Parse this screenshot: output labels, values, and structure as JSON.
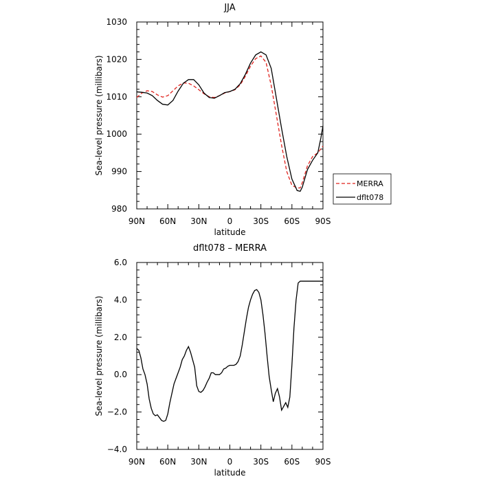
{
  "chart_data": [
    {
      "type": "line",
      "title": "JJA",
      "xlabel": "latitude",
      "ylabel": "Sea-level pressure (millibars)",
      "x_direction": "90N to 90S (latitude decreasing left to right)",
      "xlim": [
        90,
        -90
      ],
      "xticks": [
        90,
        60,
        30,
        0,
        -30,
        -60,
        -90
      ],
      "xtick_labels": [
        "90N",
        "60N",
        "30N",
        "0",
        "30S",
        "60S",
        "90S"
      ],
      "ylim": [
        980,
        1030
      ],
      "yticks": [
        980,
        990,
        1000,
        1010,
        1020,
        1030
      ],
      "ytick_labels": [
        "980",
        "990",
        "1000",
        "1010",
        "1020",
        "1030"
      ],
      "legend_position": "right, outside plot, near bottom",
      "series": [
        {
          "name": "MERRA",
          "color": "#e0201b",
          "style": "dashed",
          "x": [
            90,
            85,
            80,
            75,
            70,
            65,
            60,
            55,
            50,
            45,
            40,
            35,
            30,
            25,
            20,
            15,
            10,
            5,
            0,
            -5,
            -10,
            -15,
            -20,
            -25,
            -30,
            -35,
            -40,
            -45,
            -50,
            -55,
            -60,
            -65,
            -68,
            -70,
            -75,
            -80,
            -85,
            -90
          ],
          "y": [
            1009.8,
            1011.0,
            1011.6,
            1011.4,
            1010.5,
            1009.9,
            1010.3,
            1011.6,
            1012.9,
            1013.7,
            1013.6,
            1012.9,
            1011.9,
            1010.8,
            1010.0,
            1009.8,
            1010.3,
            1011.0,
            1011.4,
            1011.9,
            1013.2,
            1015.5,
            1018.2,
            1020.2,
            1020.9,
            1019.2,
            1013.0,
            1005.0,
            997.0,
            990.0,
            986.3,
            985.6,
            985.6,
            987.0,
            991.5,
            994.0,
            995.0,
            996.8
          ]
        },
        {
          "name": "dflt078",
          "color": "#000000",
          "style": "solid",
          "x": [
            90,
            85,
            80,
            75,
            70,
            65,
            60,
            55,
            50,
            45,
            40,
            35,
            30,
            25,
            20,
            15,
            10,
            5,
            0,
            -5,
            -10,
            -15,
            -20,
            -25,
            -30,
            -35,
            -40,
            -45,
            -50,
            -55,
            -60,
            -65,
            -68,
            -70,
            -75,
            -80,
            -85,
            -88,
            -90
          ],
          "y": [
            1011.3,
            1011.2,
            1011.0,
            1010.3,
            1009.0,
            1008.0,
            1007.8,
            1009.0,
            1011.5,
            1013.6,
            1014.6,
            1014.6,
            1013.2,
            1011.0,
            1009.8,
            1009.6,
            1010.3,
            1011.1,
            1011.4,
            1012.0,
            1013.5,
            1016.0,
            1019.0,
            1021.2,
            1022.0,
            1021.2,
            1017.6,
            1009.5,
            1001.5,
            994.0,
            988.0,
            984.9,
            984.7,
            985.8,
            990.5,
            993.0,
            995.0,
            999.0,
            1002.2
          ]
        }
      ]
    },
    {
      "type": "line",
      "title": "dflt078 – MERRA",
      "xlabel": "latitude",
      "ylabel": "Sea-level pressure (millibars)",
      "x_direction": "90N to 90S (latitude decreasing left to right)",
      "xlim": [
        90,
        -90
      ],
      "xticks": [
        90,
        60,
        30,
        0,
        -30,
        -60,
        -90
      ],
      "xtick_labels": [
        "90N",
        "60N",
        "30N",
        "0",
        "30S",
        "60S",
        "90S"
      ],
      "ylim": [
        -4.0,
        6.0
      ],
      "yticks": [
        -4.0,
        -2.0,
        0.0,
        2.0,
        4.0,
        6.0
      ],
      "ytick_labels": [
        "−4.0",
        "−2.0",
        "0.0",
        "2.0",
        "4.0",
        "6.0"
      ],
      "series": [
        {
          "color": "#000000",
          "style": "solid",
          "x": [
            90,
            88,
            86,
            84,
            82,
            80,
            78,
            76,
            74,
            72,
            70,
            68,
            66,
            64,
            62,
            60,
            58,
            56,
            54,
            52,
            50,
            48,
            46,
            44,
            42,
            40,
            38,
            36,
            34,
            32,
            30,
            28,
            26,
            24,
            22,
            20,
            18,
            16,
            14,
            12,
            10,
            8,
            6,
            4,
            2,
            0,
            -2,
            -4,
            -6,
            -8,
            -10,
            -12,
            -14,
            -16,
            -18,
            -20,
            -22,
            -24,
            -26,
            -28,
            -30,
            -32,
            -34,
            -36,
            -38,
            -40,
            -42,
            -44,
            -46,
            -48,
            -50,
            -52,
            -54,
            -56,
            -58,
            -60,
            -62,
            -64,
            -66,
            -68,
            -70,
            -72,
            -74,
            -76,
            -78,
            -80,
            -82,
            -84,
            -86,
            -88,
            -90
          ],
          "y": [
            1.4,
            1.3,
            0.9,
            0.3,
            0.0,
            -0.5,
            -1.3,
            -1.8,
            -2.1,
            -2.2,
            -2.15,
            -2.3,
            -2.45,
            -2.5,
            -2.45,
            -2.1,
            -1.5,
            -1.0,
            -0.5,
            -0.2,
            0.1,
            0.4,
            0.8,
            1.0,
            1.3,
            1.5,
            1.2,
            0.8,
            0.4,
            -0.6,
            -0.9,
            -0.95,
            -0.85,
            -0.65,
            -0.4,
            -0.2,
            0.1,
            0.1,
            0.0,
            0.0,
            0.0,
            0.1,
            0.3,
            0.35,
            0.45,
            0.5,
            0.5,
            0.5,
            0.55,
            0.7,
            1.0,
            1.6,
            2.3,
            3.0,
            3.6,
            4.0,
            4.3,
            4.5,
            4.55,
            4.4,
            4.0,
            3.2,
            2.2,
            1.0,
            -0.1,
            -0.8,
            -1.45,
            -1.0,
            -0.75,
            -1.2,
            -1.9,
            -1.7,
            -1.5,
            -1.75,
            -1.2,
            0.5,
            2.5,
            4.0,
            4.9,
            5.0,
            5.0,
            5.0,
            5.0,
            5.0,
            5.0,
            5.0,
            5.0,
            5.0,
            5.0,
            5.0,
            5.0
          ]
        }
      ]
    }
  ]
}
